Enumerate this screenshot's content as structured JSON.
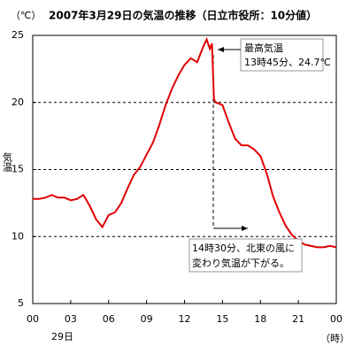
{
  "chart_data": {
    "type": "line",
    "title": "2007年3月29日の気温の推移（日立市役所：10分値）",
    "y_unit": "（℃）",
    "y_label": "気温",
    "x_unit": "（時）",
    "date_label": "29日",
    "annotations": [
      [
        "最高気温",
        "13時45分、24.7℃"
      ],
      [
        "14時30分、北東の風に",
        "変わり気温が下がる。"
      ]
    ],
    "color": "#e00000",
    "grid": true,
    "xlim": [
      0,
      24
    ],
    "ylim": [
      5,
      25
    ],
    "xticks": [
      {
        "value": 0,
        "label": "00"
      },
      {
        "value": 3,
        "label": "03"
      },
      {
        "value": 6,
        "label": "06"
      },
      {
        "value": 9,
        "label": "09"
      },
      12,
      15,
      18,
      21,
      {
        "value": 24,
        "label": "00"
      }
    ],
    "yticks": [
      5,
      10,
      15,
      20,
      25
    ],
    "x": [
      0,
      0.5,
      1,
      1.5,
      2,
      2.5,
      3,
      3.5,
      4,
      4.5,
      5,
      5.5,
      6,
      6.5,
      7,
      7.5,
      8,
      8.5,
      9,
      9.5,
      10,
      10.5,
      11,
      11.5,
      12,
      12.5,
      13,
      13.5,
      13.75,
      14,
      14.17,
      14.33,
      14.5,
      15,
      15.5,
      16,
      16.5,
      17,
      17.5,
      18,
      18.5,
      19,
      19.5,
      20,
      20.5,
      21,
      21.5,
      22,
      22.5,
      23,
      23.5,
      24
    ],
    "values": [
      12.8,
      12.8,
      12.9,
      13.1,
      12.9,
      12.9,
      12.7,
      12.8,
      13.1,
      12.3,
      11.3,
      10.7,
      11.6,
      11.8,
      12.5,
      13.6,
      14.6,
      15.2,
      16.1,
      17.0,
      18.3,
      19.8,
      21.0,
      22.0,
      22.8,
      23.3,
      23.0,
      24.2,
      24.7,
      24.0,
      24.4,
      20.2,
      20.0,
      19.8,
      18.5,
      17.3,
      16.8,
      16.8,
      16.5,
      16.0,
      14.7,
      13.0,
      11.8,
      10.8,
      10.1,
      9.7,
      9.4,
      9.3,
      9.2,
      9.2,
      9.3,
      9.2
    ]
  }
}
